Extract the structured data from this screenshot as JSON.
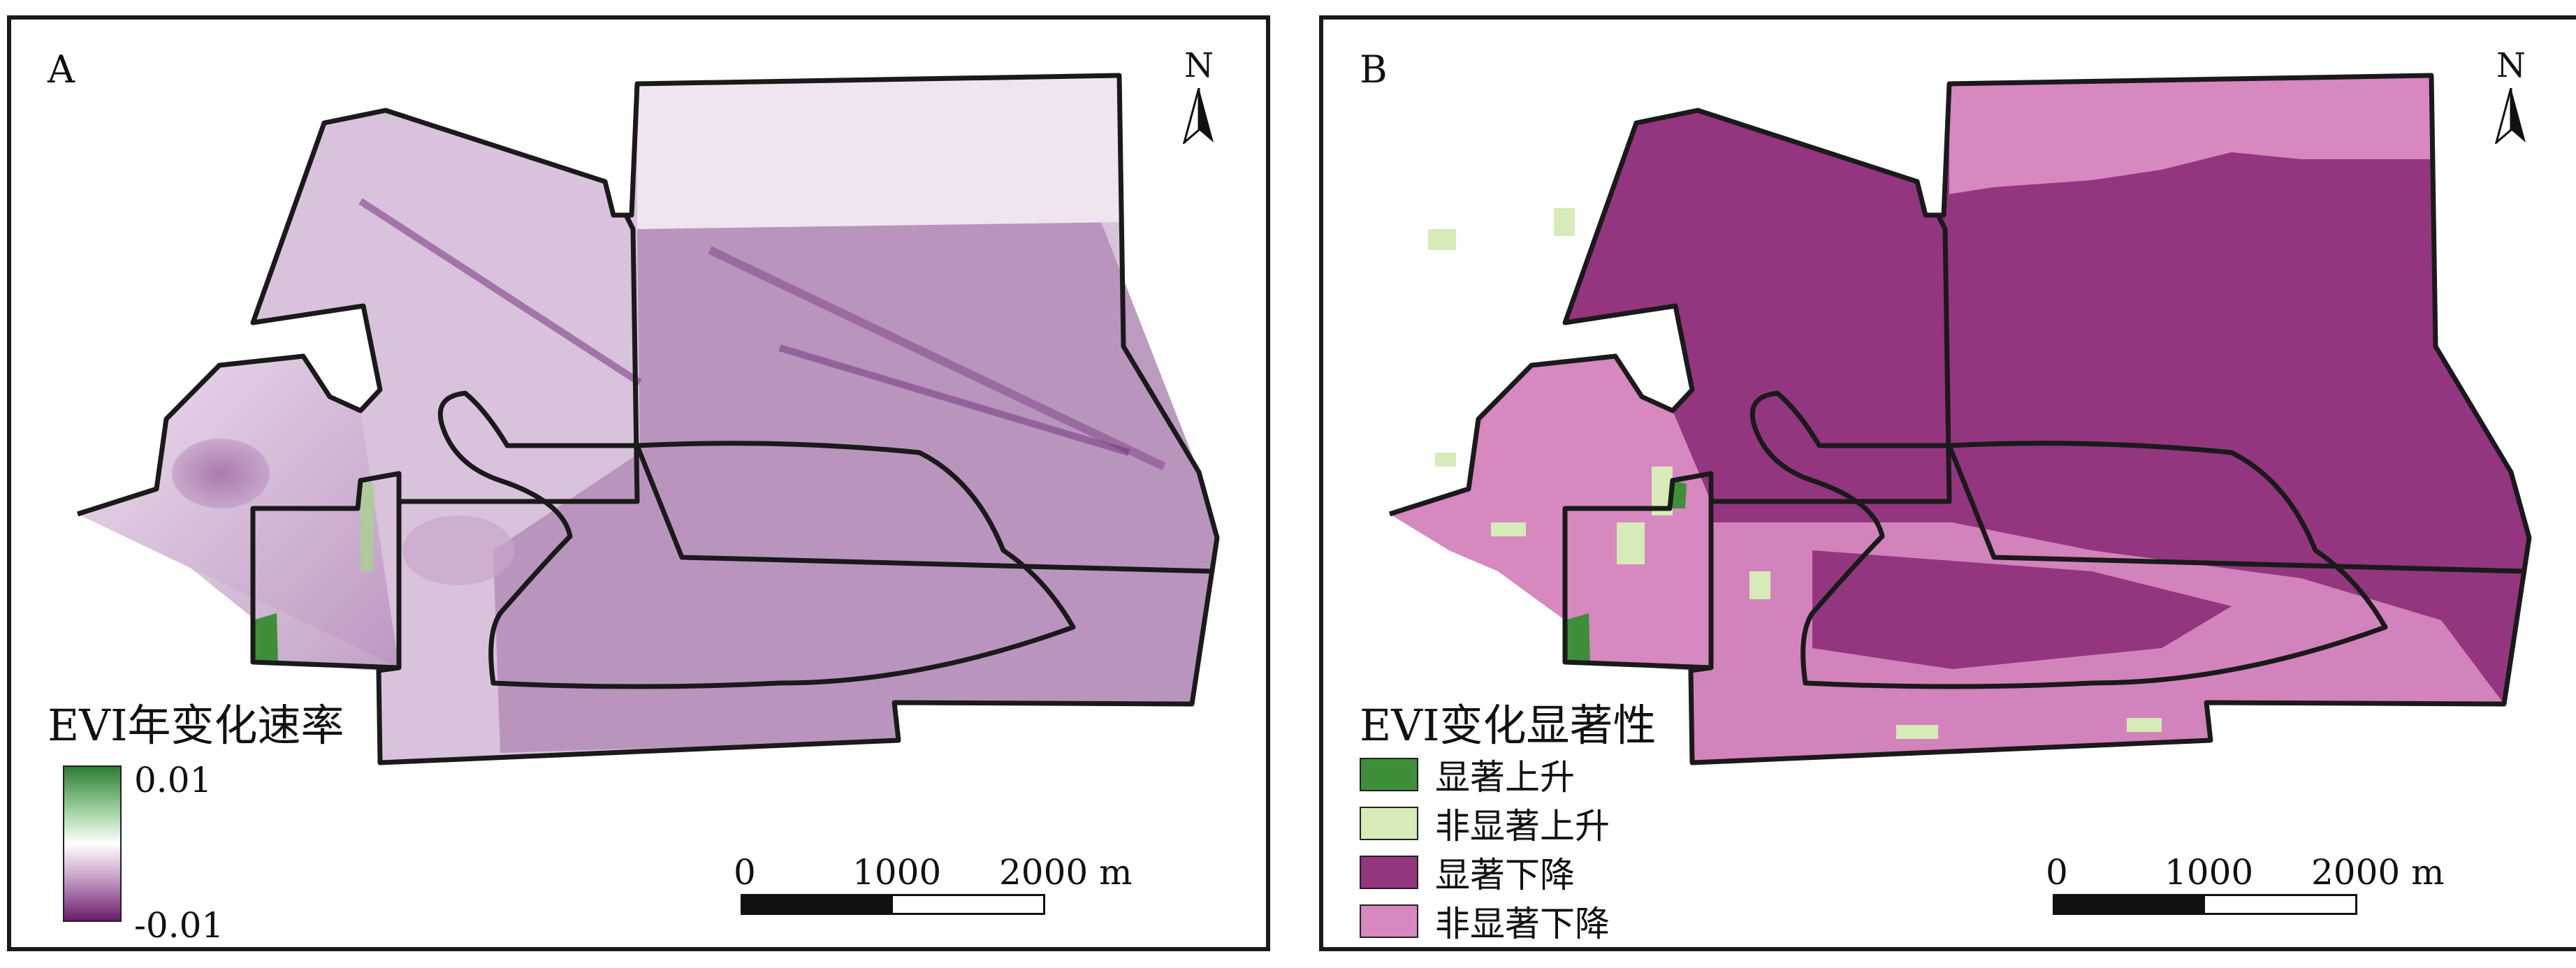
{
  "panel_a": {
    "letter": "A",
    "north_label": "N",
    "legend_title": "EVI年变化速率",
    "legend_max": "0.01",
    "legend_min": "-0.01",
    "scale": {
      "zero": "0",
      "mid": "1000",
      "end": "2000 m"
    },
    "gradient_colors": [
      "#2e7d32",
      "#ffffff",
      "#6a1b6a"
    ]
  },
  "panel_b": {
    "letter": "B",
    "north_label": "N",
    "legend_title": "EVI变化显著性",
    "classes": [
      {
        "label": "显著上升",
        "color": "#3f8f3a"
      },
      {
        "label": "非显著上升",
        "color": "#d6ebb8"
      },
      {
        "label": "显著下降",
        "color": "#94357f"
      },
      {
        "label": "非显著下降",
        "color": "#d688bf"
      }
    ],
    "scale": {
      "zero": "0",
      "mid": "1000",
      "end": "2000 m"
    }
  }
}
